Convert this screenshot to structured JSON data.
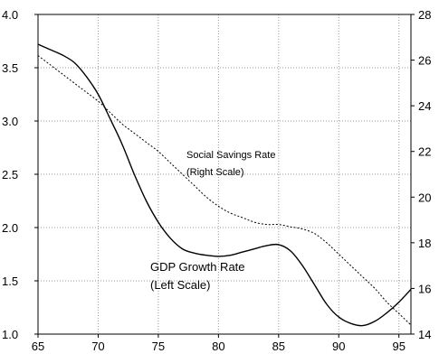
{
  "chart_data": {
    "type": "line",
    "title": "",
    "xlabel": "",
    "ylabel_left": "",
    "ylabel_right": "",
    "xlim": [
      65,
      96
    ],
    "ylim_left": [
      1.0,
      4.0
    ],
    "ylim_right": [
      14,
      28
    ],
    "grid": true,
    "x_ticks": [
      "65",
      "70",
      "75",
      "80",
      "85",
      "90",
      "95"
    ],
    "y_left_ticks": [
      "1.0",
      "1.5",
      "2.0",
      "2.5",
      "3.0",
      "3.5",
      "4.0"
    ],
    "y_right_ticks": [
      "14",
      "16",
      "18",
      "20",
      "22",
      "24",
      "26",
      "28"
    ],
    "series": [
      {
        "name": "GDP Growth Rate",
        "axis": "left",
        "style": "solid",
        "x": [
          65,
          66,
          67,
          68,
          69,
          70,
          71,
          72,
          73,
          74,
          75,
          76,
          77,
          78,
          79,
          80,
          81,
          82,
          83,
          84,
          85,
          86,
          87,
          88,
          89,
          90,
          91,
          92,
          93,
          94,
          95,
          96
        ],
        "y": [
          3.72,
          3.67,
          3.62,
          3.55,
          3.42,
          3.25,
          3.02,
          2.78,
          2.5,
          2.25,
          2.05,
          1.9,
          1.8,
          1.76,
          1.74,
          1.73,
          1.74,
          1.77,
          1.8,
          1.83,
          1.84,
          1.78,
          1.64,
          1.46,
          1.28,
          1.16,
          1.1,
          1.08,
          1.12,
          1.2,
          1.3,
          1.42
        ]
      },
      {
        "name": "Social Savings Rate",
        "axis": "right",
        "style": "dotted",
        "x": [
          65,
          66,
          67,
          68,
          69,
          70,
          71,
          72,
          73,
          74,
          75,
          76,
          77,
          78,
          79,
          80,
          81,
          82,
          83,
          84,
          85,
          86,
          87,
          88,
          89,
          90,
          91,
          92,
          93,
          94,
          95,
          96
        ],
        "y": [
          26.2,
          25.8,
          25.4,
          25.0,
          24.6,
          24.2,
          23.7,
          23.2,
          22.8,
          22.4,
          22.0,
          21.5,
          21.0,
          20.5,
          20.0,
          19.6,
          19.3,
          19.1,
          18.9,
          18.8,
          18.8,
          18.7,
          18.6,
          18.4,
          18.0,
          17.5,
          17.0,
          16.5,
          16.0,
          15.4,
          14.9,
          14.4
        ]
      }
    ],
    "annotations": {
      "savings_line1": "Social Savings Rate",
      "savings_line2": "(Right Scale)",
      "gdp_line1": "GDP Growth Rate",
      "gdp_line2": "(Left Scale)"
    }
  }
}
